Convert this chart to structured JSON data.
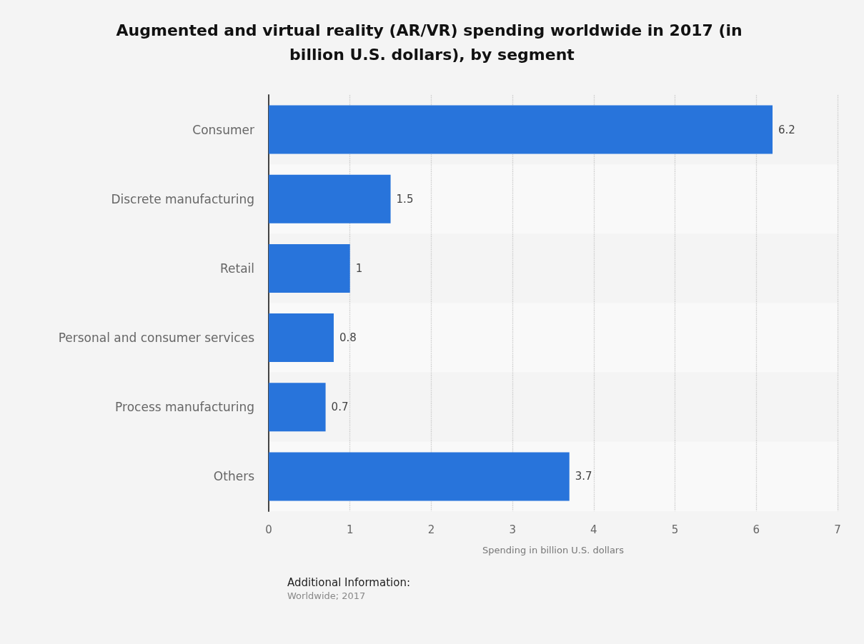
{
  "chart_data": {
    "type": "bar",
    "orientation": "horizontal",
    "title": "Augmented and virtual reality (AR/VR) spending worldwide in 2017 (in billion U.S. dollars), by segment",
    "xlabel": "Spending in billion U.S. dollars",
    "categories": [
      "Consumer",
      "Discrete manufacturing",
      "Retail",
      "Personal and consumer services",
      "Process manufacturing",
      "Others"
    ],
    "values": [
      6.2,
      1.5,
      1,
      0.8,
      0.7,
      3.7
    ],
    "color": "#2874db",
    "data_labels": true,
    "xlim": [
      0,
      7
    ],
    "xticks": [
      0,
      1,
      2,
      3,
      4,
      5,
      6,
      7
    ],
    "grid": "x",
    "annotations": [
      "Additional Information:",
      "Worldwide; 2017"
    ]
  }
}
